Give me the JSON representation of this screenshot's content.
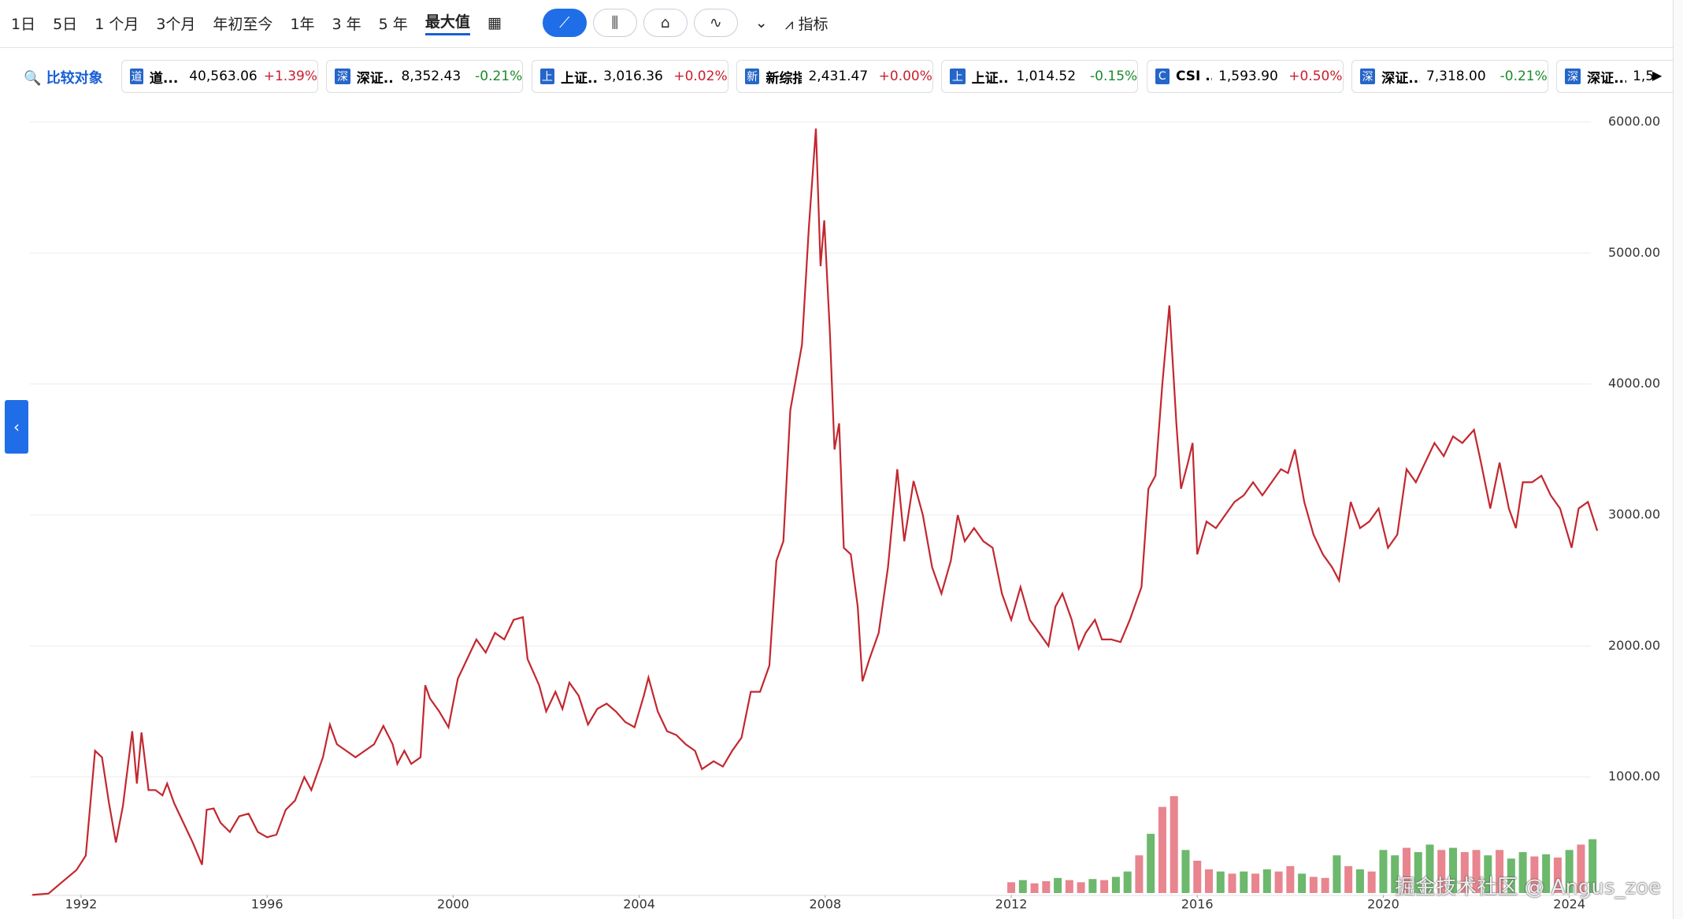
{
  "toolbar": {
    "ranges": [
      "1日",
      "5日",
      "1 个月",
      "3个月",
      "年初至今",
      "1年",
      "3 年",
      "5 年",
      "最大值"
    ],
    "active_range": 8,
    "indicators": "指标"
  },
  "compare": {
    "label": "比较对象",
    "items": [
      {
        "icon": "道",
        "name": "道...",
        "value": "40,563.06",
        "change": "+1.39%"
      },
      {
        "icon": "深",
        "name": "深证...",
        "value": "8,352.43",
        "change": "-0.21%"
      },
      {
        "icon": "上",
        "name": "上证...",
        "value": "3,016.36",
        "change": "+0.02%"
      },
      {
        "icon": "新",
        "name": "新综指",
        "value": "2,431.47",
        "change": "+0.00%"
      },
      {
        "icon": "上",
        "name": "上证...",
        "value": "1,014.52",
        "change": "-0.15%"
      },
      {
        "icon": "C",
        "name": "CSI ...",
        "value": "1,593.90",
        "change": "+0.50%"
      },
      {
        "icon": "深",
        "name": "深证...",
        "value": "7,318.00",
        "change": "-0.21%"
      },
      {
        "icon": "深",
        "name": "深证...",
        "value": "1,5",
        "change": ""
      }
    ]
  },
  "watermark": "掘金技术社区 @ Angus_zoe",
  "chart_data": {
    "type": "line",
    "color": "#c3272f",
    "grid": true,
    "xlim": [
      1990.9,
      2024.7
    ],
    "xticks": [
      1992,
      1996,
      2000,
      2004,
      2008,
      2012,
      2016,
      2020,
      2024
    ],
    "ylim": [
      0,
      6000
    ],
    "yticks": [
      {
        "value": 1000,
        "label": "1000.00"
      },
      {
        "value": 2000,
        "label": "2000.00"
      },
      {
        "value": 3000,
        "label": "3000.00"
      },
      {
        "value": 4000,
        "label": "4000.00"
      },
      {
        "value": 5000,
        "label": "5000.00"
      },
      {
        "value": 6000,
        "label": "6000.00"
      }
    ],
    "x": [
      1990.95,
      1991.3,
      1991.6,
      1991.9,
      1992.1,
      1992.3,
      1992.45,
      1992.6,
      1992.75,
      1992.9,
      1993.1,
      1993.2,
      1993.3,
      1993.45,
      1993.6,
      1993.75,
      1993.85,
      1994.0,
      1994.2,
      1994.4,
      1994.6,
      1994.7,
      1994.85,
      1995.0,
      1995.2,
      1995.4,
      1995.6,
      1995.8,
      1996.0,
      1996.2,
      1996.4,
      1996.6,
      1996.8,
      1996.95,
      1997.2,
      1997.35,
      1997.5,
      1997.7,
      1997.9,
      1998.1,
      1998.3,
      1998.5,
      1998.7,
      1998.8,
      1998.95,
      1999.1,
      1999.3,
      1999.4,
      1999.5,
      1999.7,
      1999.9,
      2000.1,
      2000.3,
      2000.5,
      2000.7,
      2000.9,
      2001.1,
      2001.3,
      2001.5,
      2001.6,
      2001.85,
      2002.0,
      2002.2,
      2002.35,
      2002.5,
      2002.7,
      2002.9,
      2003.1,
      2003.3,
      2003.5,
      2003.7,
      2003.9,
      2004.1,
      2004.2,
      2004.4,
      2004.6,
      2004.8,
      2005.0,
      2005.2,
      2005.35,
      2005.6,
      2005.8,
      2006.0,
      2006.2,
      2006.4,
      2006.6,
      2006.8,
      2006.95,
      2007.1,
      2007.25,
      2007.4,
      2007.5,
      2007.65,
      2007.8,
      2007.9,
      2007.98,
      2008.1,
      2008.2,
      2008.3,
      2008.4,
      2008.55,
      2008.7,
      2008.8,
      2008.95,
      2009.15,
      2009.35,
      2009.55,
      2009.7,
      2009.9,
      2010.1,
      2010.3,
      2010.5,
      2010.7,
      2010.85,
      2011.0,
      2011.2,
      2011.4,
      2011.6,
      2011.8,
      2012.0,
      2012.2,
      2012.4,
      2012.6,
      2012.8,
      2012.95,
      2013.1,
      2013.3,
      2013.45,
      2013.6,
      2013.8,
      2013.95,
      2014.15,
      2014.35,
      2014.55,
      2014.8,
      2014.95,
      2015.1,
      2015.25,
      2015.4,
      2015.55,
      2015.65,
      2015.8,
      2015.9,
      2016.0,
      2016.2,
      2016.4,
      2016.6,
      2016.8,
      2017.0,
      2017.2,
      2017.4,
      2017.6,
      2017.8,
      2017.95,
      2018.1,
      2018.3,
      2018.5,
      2018.7,
      2018.9,
      2019.05,
      2019.3,
      2019.5,
      2019.7,
      2019.9,
      2020.1,
      2020.3,
      2020.5,
      2020.7,
      2020.9,
      2021.1,
      2021.3,
      2021.5,
      2021.7,
      2021.95,
      2022.1,
      2022.3,
      2022.5,
      2022.7,
      2022.85,
      2023.0,
      2023.2,
      2023.4,
      2023.6,
      2023.8,
      2024.05,
      2024.2,
      2024.4,
      2024.6
    ],
    "series": [
      {
        "values": [
          100,
          110,
          200,
          290,
          400,
          1200,
          1150,
          800,
          500,
          780,
          1350,
          950,
          1340,
          900,
          900,
          860,
          950,
          800,
          650,
          500,
          330,
          750,
          760,
          650,
          580,
          700,
          720,
          580,
          540,
          560,
          750,
          820,
          1000,
          900,
          1150,
          1400,
          1250,
          1200,
          1150,
          1200,
          1250,
          1390,
          1250,
          1100,
          1200,
          1100,
          1150,
          1700,
          1600,
          1500,
          1380,
          1750,
          1900,
          2050,
          1950,
          2100,
          2050,
          2200,
          2220,
          1900,
          1700,
          1500,
          1650,
          1520,
          1720,
          1620,
          1400,
          1520,
          1560,
          1500,
          1420,
          1380,
          1620,
          1760,
          1500,
          1350,
          1320,
          1250,
          1200,
          1060,
          1120,
          1080,
          1200,
          1300,
          1650,
          1650,
          1850,
          2650,
          2800,
          3800,
          4100,
          4300,
          5200,
          5950,
          4900,
          5250,
          4400,
          3500,
          3700,
          2750,
          2700,
          2300,
          1730,
          1900,
          2100,
          2600,
          3350,
          2800,
          3260,
          3000,
          2600,
          2400,
          2650,
          3000,
          2800,
          2900,
          2800,
          2750,
          2400,
          2200,
          2450,
          2200,
          2100,
          2000,
          2300,
          2400,
          2200,
          1980,
          2100,
          2200,
          2050,
          2050,
          2030,
          2200,
          2450,
          3200,
          3300,
          4000,
          4600,
          3700,
          3200,
          3400,
          3550,
          2700,
          2950,
          2900,
          3000,
          3100,
          3150,
          3250,
          3150,
          3250,
          3350,
          3320,
          3500,
          3100,
          2850,
          2700,
          2600,
          2500,
          3100,
          2900,
          2950,
          3050,
          2750,
          2850,
          3350,
          3250,
          3400,
          3550,
          3450,
          3600,
          3550,
          3650,
          3400,
          3050,
          3400,
          3050,
          2900,
          3250,
          3250,
          3300,
          3150,
          3050,
          2750,
          3050,
          3100,
          2880
        ]
      }
    ],
    "volume": {
      "x": [
        2012.0,
        2012.25,
        2012.5,
        2012.75,
        2013.0,
        2013.25,
        2013.5,
        2013.75,
        2014.0,
        2014.25,
        2014.5,
        2014.75,
        2015.0,
        2015.25,
        2015.5,
        2015.75,
        2016.0,
        2016.25,
        2016.5,
        2016.75,
        2017.0,
        2017.25,
        2017.5,
        2017.75,
        2018.0,
        2018.25,
        2018.5,
        2018.75,
        2019.0,
        2019.25,
        2019.5,
        2019.75,
        2020.0,
        2020.25,
        2020.5,
        2020.75,
        2021.0,
        2021.25,
        2021.5,
        2021.75,
        2022.0,
        2022.25,
        2022.5,
        2022.75,
        2023.0,
        2023.25,
        2023.5,
        2023.75,
        2024.0,
        2024.25,
        2024.5
      ],
      "values": [
        10,
        12,
        9,
        11,
        14,
        12,
        10,
        13,
        12,
        15,
        20,
        35,
        55,
        80,
        90,
        40,
        30,
        22,
        20,
        18,
        20,
        18,
        22,
        20,
        25,
        18,
        15,
        14,
        35,
        25,
        22,
        20,
        40,
        35,
        42,
        38,
        45,
        40,
        42,
        38,
        40,
        35,
        40,
        32,
        38,
        34,
        36,
        33,
        40,
        45,
        50
      ],
      "colors": [
        "#e8858f",
        "#6cb86c",
        "#e8858f",
        "#e8858f",
        "#6cb86c",
        "#e8858f",
        "#e8858f",
        "#6cb86c",
        "#e8858f",
        "#6cb86c",
        "#6cb86c",
        "#e8858f",
        "#6cb86c",
        "#e8858f",
        "#e8858f",
        "#6cb86c",
        "#e8858f",
        "#e8858f",
        "#6cb86c",
        "#e8858f",
        "#6cb86c",
        "#e8858f",
        "#6cb86c",
        "#e8858f",
        "#e8858f",
        "#6cb86c",
        "#e8858f",
        "#e8858f",
        "#6cb86c",
        "#e8858f",
        "#6cb86c",
        "#e8858f",
        "#6cb86c",
        "#6cb86c",
        "#e8858f",
        "#6cb86c",
        "#6cb86c",
        "#e8858f",
        "#6cb86c",
        "#e8858f",
        "#e8858f",
        "#6cb86c",
        "#e8858f",
        "#6cb86c",
        "#6cb86c",
        "#e8858f",
        "#6cb86c",
        "#e8858f",
        "#6cb86c",
        "#e8858f",
        "#6cb86c"
      ]
    }
  }
}
